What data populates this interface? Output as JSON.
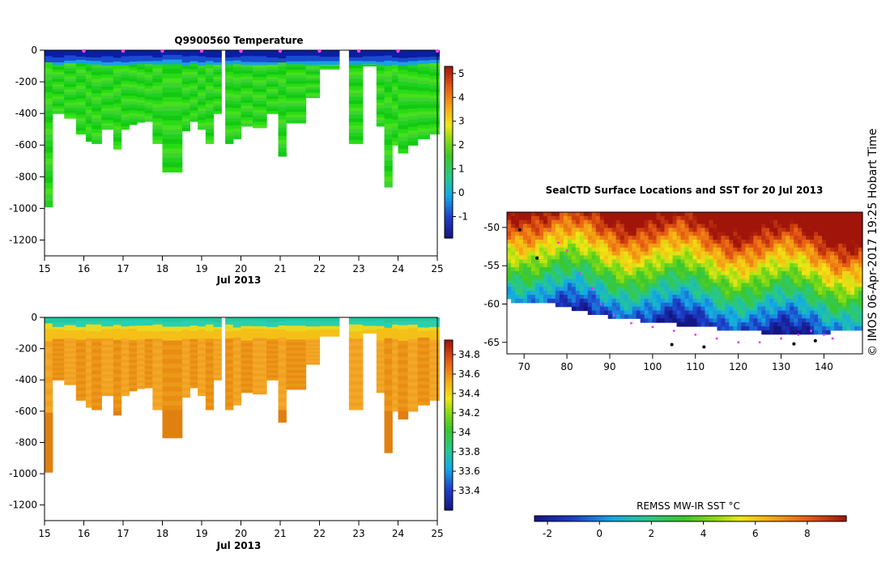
{
  "side_label": "© IMOS 06-Apr-2017 19:25 Hobart Time",
  "chart_data": [
    {
      "id": "temperature",
      "type": "heatmap",
      "title": "Q9900560  Temperature",
      "xlabel": "Jul 2013",
      "ylabel": "",
      "xlim": [
        15,
        25
      ],
      "ylim": [
        -1300,
        0
      ],
      "x_ticks": [
        "15",
        "16",
        "17",
        "18",
        "19",
        "20",
        "21",
        "22",
        "23",
        "24",
        "25"
      ],
      "y_ticks": [
        "0",
        "-200",
        "-400",
        "-600",
        "-800",
        "-1000",
        "-1200"
      ],
      "colorbar": {
        "range": [
          -1.9,
          5.3
        ],
        "ticks": [
          "-1",
          "0",
          "1",
          "2",
          "3",
          "4",
          "5"
        ]
      },
      "surface_markers_days": [
        16,
        17,
        18,
        19,
        20,
        21,
        22,
        23,
        24,
        25
      ],
      "profiles": [
        {
          "t": 15.0,
          "w": 0.2,
          "d": 990
        },
        {
          "t": 15.2,
          "w": 0.3,
          "d": 400
        },
        {
          "t": 15.5,
          "w": 0.3,
          "d": 430
        },
        {
          "t": 15.8,
          "w": 0.25,
          "d": 530
        },
        {
          "t": 16.05,
          "w": 0.15,
          "d": 575
        },
        {
          "t": 16.2,
          "w": 0.25,
          "d": 590
        },
        {
          "t": 16.45,
          "w": 0.3,
          "d": 500
        },
        {
          "t": 16.75,
          "w": 0.2,
          "d": 625
        },
        {
          "t": 16.95,
          "w": 0.2,
          "d": 500
        },
        {
          "t": 17.15,
          "w": 0.2,
          "d": 470
        },
        {
          "t": 17.35,
          "w": 0.2,
          "d": 455
        },
        {
          "t": 17.55,
          "w": 0.2,
          "d": 450
        },
        {
          "t": 17.75,
          "w": 0.25,
          "d": 590
        },
        {
          "t": 18.0,
          "w": 0.5,
          "d": 770
        },
        {
          "t": 18.5,
          "w": 0.2,
          "d": 510
        },
        {
          "t": 18.7,
          "w": 0.2,
          "d": 450
        },
        {
          "t": 18.9,
          "w": 0.2,
          "d": 500
        },
        {
          "t": 19.1,
          "w": 0.2,
          "d": 590
        },
        {
          "t": 19.3,
          "w": 0.2,
          "d": 400
        },
        {
          "t": 19.6,
          "w": 0.2,
          "d": 590
        },
        {
          "t": 19.8,
          "w": 0.2,
          "d": 560
        },
        {
          "t": 20.0,
          "w": 0.3,
          "d": 480
        },
        {
          "t": 20.3,
          "w": 0.35,
          "d": 490
        },
        {
          "t": 20.65,
          "w": 0.3,
          "d": 400
        },
        {
          "t": 20.95,
          "w": 0.2,
          "d": 670
        },
        {
          "t": 21.15,
          "w": 0.5,
          "d": 460
        },
        {
          "t": 21.65,
          "w": 0.35,
          "d": 300
        },
        {
          "t": 22.0,
          "w": 0.5,
          "d": 120
        },
        {
          "t": 22.75,
          "w": 0.35,
          "d": 590
        },
        {
          "t": 23.1,
          "w": 0.35,
          "d": 100
        },
        {
          "t": 23.45,
          "w": 0.2,
          "d": 480
        },
        {
          "t": 23.65,
          "w": 0.2,
          "d": 865
        },
        {
          "t": 23.85,
          "w": 0.15,
          "d": 600
        },
        {
          "t": 24.0,
          "w": 0.25,
          "d": 650
        },
        {
          "t": 24.25,
          "w": 0.25,
          "d": 600
        },
        {
          "t": 24.5,
          "w": 0.3,
          "d": 560
        },
        {
          "t": 24.8,
          "w": 0.25,
          "d": 530
        }
      ]
    },
    {
      "id": "salinity",
      "type": "heatmap",
      "title": "",
      "xlabel": "Jul 2013",
      "ylabel": "",
      "xlim": [
        15,
        25
      ],
      "ylim": [
        -1300,
        0
      ],
      "x_ticks": [
        "15",
        "16",
        "17",
        "18",
        "19",
        "20",
        "21",
        "22",
        "23",
        "24",
        "25"
      ],
      "y_ticks": [
        "0",
        "-200",
        "-400",
        "-600",
        "-800",
        "-1000",
        "-1200"
      ],
      "colorbar": {
        "range": [
          33.2,
          34.95
        ],
        "ticks": [
          "33.4",
          "33.6",
          "33.8",
          "34",
          "34.2",
          "34.4",
          "34.6",
          "34.8"
        ]
      },
      "profiles": [
        {
          "t": 15.0,
          "w": 0.2,
          "d": 990
        },
        {
          "t": 15.2,
          "w": 0.3,
          "d": 400
        },
        {
          "t": 15.5,
          "w": 0.3,
          "d": 430
        },
        {
          "t": 15.8,
          "w": 0.25,
          "d": 530
        },
        {
          "t": 16.05,
          "w": 0.15,
          "d": 575
        },
        {
          "t": 16.2,
          "w": 0.25,
          "d": 590
        },
        {
          "t": 16.45,
          "w": 0.3,
          "d": 500
        },
        {
          "t": 16.75,
          "w": 0.2,
          "d": 625
        },
        {
          "t": 16.95,
          "w": 0.2,
          "d": 500
        },
        {
          "t": 17.15,
          "w": 0.2,
          "d": 470
        },
        {
          "t": 17.35,
          "w": 0.2,
          "d": 455
        },
        {
          "t": 17.55,
          "w": 0.2,
          "d": 450
        },
        {
          "t": 17.75,
          "w": 0.25,
          "d": 590
        },
        {
          "t": 18.0,
          "w": 0.5,
          "d": 770
        },
        {
          "t": 18.5,
          "w": 0.2,
          "d": 510
        },
        {
          "t": 18.7,
          "w": 0.2,
          "d": 450
        },
        {
          "t": 18.9,
          "w": 0.2,
          "d": 500
        },
        {
          "t": 19.1,
          "w": 0.2,
          "d": 590
        },
        {
          "t": 19.3,
          "w": 0.2,
          "d": 400
        },
        {
          "t": 19.6,
          "w": 0.2,
          "d": 590
        },
        {
          "t": 19.8,
          "w": 0.2,
          "d": 560
        },
        {
          "t": 20.0,
          "w": 0.3,
          "d": 480
        },
        {
          "t": 20.3,
          "w": 0.35,
          "d": 490
        },
        {
          "t": 20.65,
          "w": 0.3,
          "d": 400
        },
        {
          "t": 20.95,
          "w": 0.2,
          "d": 670
        },
        {
          "t": 21.15,
          "w": 0.5,
          "d": 460
        },
        {
          "t": 21.65,
          "w": 0.35,
          "d": 300
        },
        {
          "t": 22.0,
          "w": 0.5,
          "d": 120
        },
        {
          "t": 22.75,
          "w": 0.35,
          "d": 590
        },
        {
          "t": 23.1,
          "w": 0.35,
          "d": 100
        },
        {
          "t": 23.45,
          "w": 0.2,
          "d": 480
        },
        {
          "t": 23.65,
          "w": 0.2,
          "d": 865
        },
        {
          "t": 23.85,
          "w": 0.15,
          "d": 600
        },
        {
          "t": 24.0,
          "w": 0.25,
          "d": 650
        },
        {
          "t": 24.25,
          "w": 0.25,
          "d": 600
        },
        {
          "t": 24.5,
          "w": 0.3,
          "d": 560
        },
        {
          "t": 24.8,
          "w": 0.25,
          "d": 530
        }
      ]
    },
    {
      "id": "sst-map",
      "type": "heatmap",
      "title": "SealCTD Surface Locations and SST for 20 Jul 2013",
      "xlabel": "",
      "ylabel": "",
      "xlim": [
        66,
        149
      ],
      "ylim": [
        -66.5,
        -48
      ],
      "x_ticks": [
        "70",
        "80",
        "90",
        "100",
        "110",
        "120",
        "130",
        "140"
      ],
      "y_ticks": [
        "-50",
        "-55",
        "-60",
        "-65"
      ],
      "colorbar": {
        "label": "REMSS MW-IR SST °C",
        "range": [
          -2.5,
          9.5
        ],
        "ticks": [
          "-2",
          "0",
          "2",
          "4",
          "6",
          "8"
        ]
      },
      "track": [
        [
          76,
          -50.5
        ],
        [
          78,
          -52
        ],
        [
          80,
          -53
        ],
        [
          83,
          -56
        ],
        [
          86,
          -58
        ],
        [
          88,
          -60
        ],
        [
          91,
          -61.5
        ],
        [
          95,
          -62.5
        ],
        [
          100,
          -63
        ],
        [
          105,
          -63.5
        ],
        [
          110,
          -64
        ],
        [
          115,
          -64.5
        ],
        [
          120,
          -65
        ],
        [
          125,
          -65
        ],
        [
          130,
          -64.5
        ],
        [
          134,
          -64
        ],
        [
          137,
          -63.5
        ],
        [
          140,
          -64
        ],
        [
          142,
          -64.5
        ]
      ]
    }
  ]
}
